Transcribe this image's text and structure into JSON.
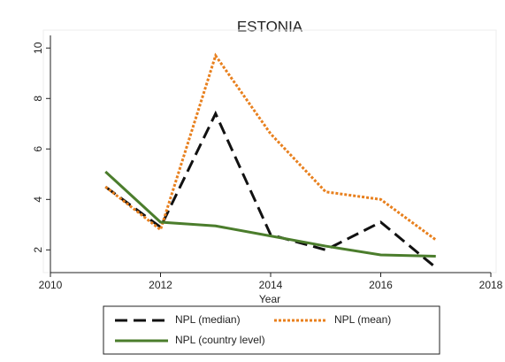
{
  "chart_data": {
    "type": "line",
    "title": "ESTONIA",
    "x_label": "Year",
    "x": [
      2011,
      2012,
      2013,
      2014,
      2015,
      2016,
      2017
    ],
    "series": [
      {
        "name": "NPL (median)",
        "color": "#111111",
        "style": "dashed",
        "values": [
          4.5,
          2.9,
          7.4,
          2.6,
          2.0,
          3.1,
          1.3
        ]
      },
      {
        "name": "NPL (mean)",
        "color": "#e8801e",
        "style": "dotted",
        "values": [
          4.5,
          2.8,
          9.7,
          6.6,
          4.3,
          4.0,
          2.4
        ]
      },
      {
        "name": "NPL (country level)",
        "color": "#4b7d2c",
        "style": "solid",
        "values": [
          5.1,
          3.1,
          2.95,
          2.55,
          2.15,
          1.8,
          1.75
        ]
      }
    ],
    "xlim": [
      2010,
      2018
    ],
    "xticks": [
      2010,
      2012,
      2014,
      2016,
      2018
    ],
    "ylim": [
      1.1,
      10.5
    ],
    "yticks": [
      2,
      4,
      6,
      8,
      10
    ]
  }
}
